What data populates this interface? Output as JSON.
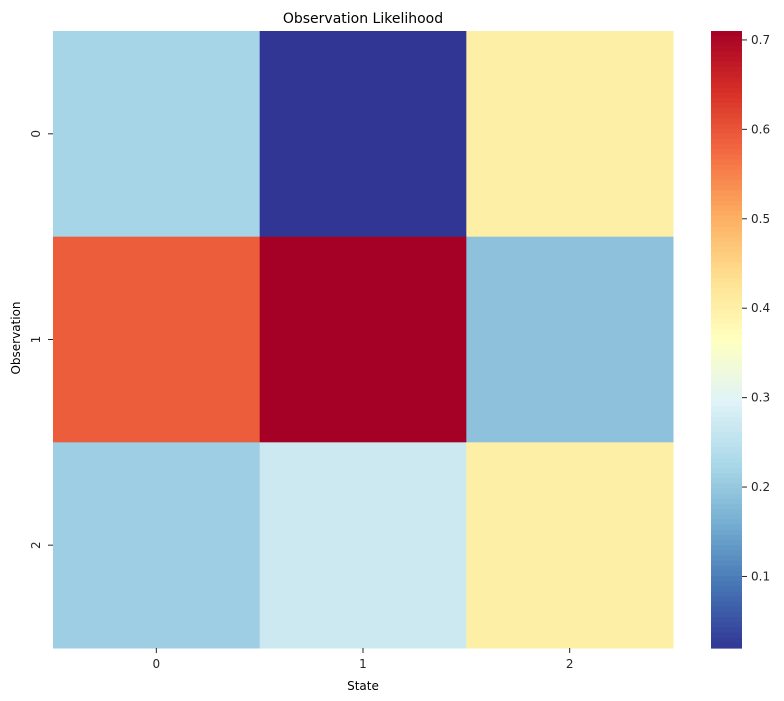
{
  "chart_data": {
    "type": "heatmap",
    "title": "Observation Likelihood",
    "xlabel": "State",
    "ylabel": "Observation",
    "x_categories": [
      "0",
      "1",
      "2"
    ],
    "y_categories": [
      "0",
      "1",
      "2"
    ],
    "values": [
      [
        0.22,
        0.02,
        0.4
      ],
      [
        0.59,
        0.71,
        0.19
      ],
      [
        0.21,
        0.27,
        0.4
      ]
    ],
    "colormap": "RdYlBu_r",
    "colorbar": {
      "min": 0.02,
      "max": 0.71,
      "ticks": [
        0.1,
        0.2,
        0.3,
        0.4,
        0.5,
        0.6,
        0.7
      ],
      "tick_labels": [
        "0.1",
        "0.2",
        "0.3",
        "0.4",
        "0.5",
        "0.6",
        "0.7"
      ]
    }
  }
}
